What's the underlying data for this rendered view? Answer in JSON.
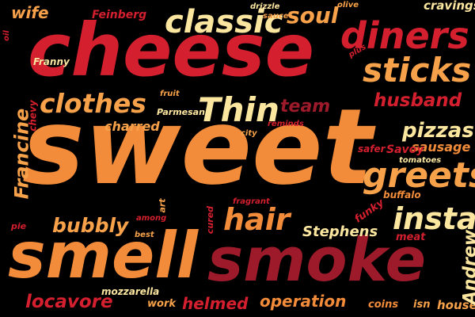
{
  "palette": {
    "background": "#000000",
    "crimson": "#d41f2e",
    "dark-red": "#9c1a2a",
    "orange": "#f28c3a",
    "light-orange": "#f7a24a",
    "cream": "#fbe6a0"
  },
  "words": {
    "cheese": "cheese",
    "sweet": "sweet",
    "smell": "smell",
    "smoke": "smoke",
    "diners": "diners",
    "classic": "classic",
    "sticks": "sticks",
    "clothes": "clothes",
    "thin": "Thin",
    "greets": "greets",
    "insta": "insta",
    "hair": "hair",
    "soul": "soul",
    "pizzas": "pizzas",
    "husband": "husband",
    "bubbly": "bubbly",
    "locavore": "locavore",
    "helmed": "helmed",
    "operation": "operation",
    "stephens": "Stephens",
    "francine": "Francine",
    "wife": "wife",
    "feinberg": "Feinberg",
    "cravings": "cravings",
    "team": "team",
    "charred": "charred",
    "sausage": "sausage",
    "savoy": "Savoy",
    "andrew": "Andrew",
    "house": "house",
    "coins": "coins",
    "isn": "isn",
    "work": "work",
    "mozzarella": "mozzarella",
    "chevy": "chevy",
    "franny": "Franny",
    "drizzle": "drizzle",
    "sauce": "sauce",
    "olive": "olive",
    "oil": "oil",
    "plus": "plus",
    "fruit": "fruit",
    "parmesan": "Parmesan",
    "city": "city",
    "reminds": "reminds",
    "safer": "safer",
    "tomatoes": "tomatoes",
    "buffalo": "buffalo",
    "funky": "funky",
    "meat": "meat",
    "cured": "cured",
    "fragrant": "fragrant",
    "art": "art",
    "among": "among",
    "best": "best",
    "pie": "pie"
  }
}
